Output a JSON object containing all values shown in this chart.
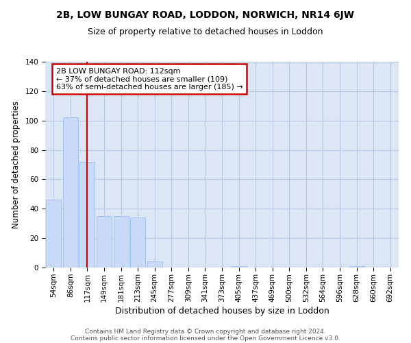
{
  "title1": "2B, LOW BUNGAY ROAD, LODDON, NORWICH, NR14 6JW",
  "title2": "Size of property relative to detached houses in Loddon",
  "xlabel": "Distribution of detached houses by size in Loddon",
  "ylabel": "Number of detached properties",
  "categories": [
    "54sqm",
    "86sqm",
    "117sqm",
    "149sqm",
    "181sqm",
    "213sqm",
    "245sqm",
    "277sqm",
    "309sqm",
    "341sqm",
    "373sqm",
    "405sqm",
    "437sqm",
    "469sqm",
    "500sqm",
    "532sqm",
    "564sqm",
    "596sqm",
    "628sqm",
    "660sqm",
    "692sqm"
  ],
  "values": [
    46,
    102,
    72,
    35,
    35,
    34,
    4,
    0,
    0,
    0,
    0,
    1,
    0,
    0,
    0,
    0,
    0,
    0,
    1,
    0,
    0
  ],
  "bar_color": "#c9daf8",
  "bar_edge_color": "#a4c2f4",
  "grid_color": "#b4c7e7",
  "background_color": "#dce6f5",
  "red_line_x": 2.0,
  "annotation_line1": "2B LOW BUNGAY ROAD: 112sqm",
  "annotation_line2": "← 37% of detached houses are smaller (109)",
  "annotation_line3": "63% of semi-detached houses are larger (185) →",
  "annotation_box_color": "#ffffff",
  "annotation_box_edge": "#cc0000",
  "red_line_color": "#cc0000",
  "ylim": [
    0,
    140
  ],
  "yticks": [
    0,
    20,
    40,
    60,
    80,
    100,
    120,
    140
  ],
  "footer_line1": "Contains HM Land Registry data © Crown copyright and database right 2024.",
  "footer_line2": "Contains public sector information licensed under the Open Government Licence v3.0.",
  "title1_fontsize": 10,
  "title2_fontsize": 9,
  "xlabel_fontsize": 9,
  "ylabel_fontsize": 8.5,
  "tick_fontsize": 7.5,
  "annotation_fontsize": 8,
  "footer_fontsize": 6.5
}
